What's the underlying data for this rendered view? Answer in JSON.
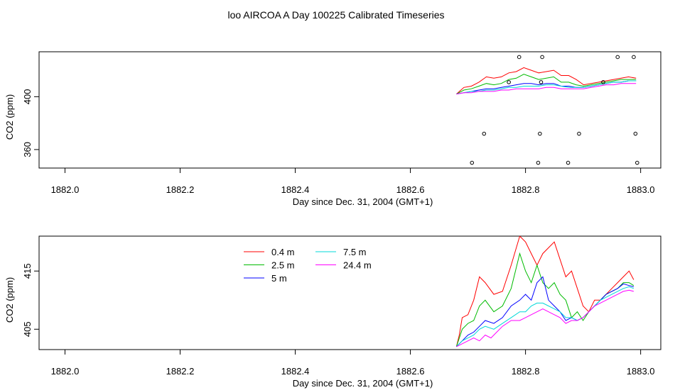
{
  "title": "loo AIRCOA A  Day 100225  Calibrated Timeseries",
  "chart_data": [
    {
      "type": "scatter",
      "xlabel": "Day since Dec. 31, 2004 (GMT+1)",
      "ylabel": "CO2 (ppm)",
      "xlim": [
        1881.955,
        1883.035
      ],
      "ylim": [
        346,
        434
      ],
      "xticks": [
        "1882.0",
        "1882.2",
        "1882.4",
        "1882.6",
        "1882.8",
        "1883.0"
      ],
      "yticks": [
        "360",
        "400"
      ],
      "grid": false,
      "series": [
        {
          "name": "0.4 m",
          "color": "#ff0000",
          "x": [
            1882.68,
            1882.693,
            1882.706,
            1882.719,
            1882.732,
            1882.745,
            1882.758,
            1882.771,
            1882.784,
            1882.797,
            1882.81,
            1882.823,
            1882.836,
            1882.849,
            1882.862,
            1882.875,
            1882.888,
            1882.901,
            1882.914,
            1882.927,
            1882.94,
            1882.953,
            1882.966,
            1882.979,
            1882.992
          ],
          "y": [
            402,
            407,
            408,
            411,
            415,
            414,
            415,
            418,
            419,
            422,
            420,
            418,
            419,
            420,
            416,
            416,
            413,
            409,
            410,
            411,
            412,
            413,
            414,
            415,
            414
          ]
        },
        {
          "name": "2.5 m",
          "color": "#00bb00",
          "x": [
            1882.68,
            1882.693,
            1882.706,
            1882.719,
            1882.732,
            1882.745,
            1882.758,
            1882.771,
            1882.784,
            1882.797,
            1882.81,
            1882.823,
            1882.836,
            1882.849,
            1882.862,
            1882.875,
            1882.888,
            1882.901,
            1882.914,
            1882.927,
            1882.94,
            1882.953,
            1882.966,
            1882.979,
            1882.992
          ],
          "y": [
            402,
            405,
            406,
            408,
            410,
            409,
            410,
            413,
            414,
            417,
            415,
            413,
            414,
            415,
            411,
            411,
            409,
            408,
            409,
            410,
            411,
            412,
            413,
            413,
            413
          ]
        },
        {
          "name": "5 m",
          "color": "#0000ff",
          "x": [
            1882.68,
            1882.693,
            1882.706,
            1882.719,
            1882.732,
            1882.745,
            1882.758,
            1882.771,
            1882.784,
            1882.797,
            1882.81,
            1882.823,
            1882.836,
            1882.849,
            1882.862,
            1882.875,
            1882.888,
            1882.901,
            1882.914,
            1882.927,
            1882.94,
            1882.953,
            1882.966,
            1882.979,
            1882.992
          ],
          "y": [
            402,
            403,
            404,
            405,
            406,
            406,
            407,
            408,
            409,
            410,
            410,
            409,
            410,
            410,
            408,
            408,
            407,
            407,
            408,
            409,
            410,
            411,
            411,
            412,
            412
          ]
        },
        {
          "name": "7.5 m",
          "color": "#00d8d8",
          "x": [
            1882.68,
            1882.693,
            1882.706,
            1882.719,
            1882.732,
            1882.745,
            1882.758,
            1882.771,
            1882.784,
            1882.797,
            1882.81,
            1882.823,
            1882.836,
            1882.849,
            1882.862,
            1882.875,
            1882.888,
            1882.901,
            1882.914,
            1882.927,
            1882.94,
            1882.953,
            1882.966,
            1882.979,
            1882.992
          ],
          "y": [
            402,
            403,
            404,
            404,
            405,
            405,
            406,
            407,
            407,
            408,
            408,
            408,
            409,
            409,
            408,
            407,
            407,
            407,
            408,
            409,
            410,
            411,
            411,
            412,
            412
          ]
        },
        {
          "name": "24.4 m",
          "color": "#ff00ff",
          "x": [
            1882.68,
            1882.693,
            1882.706,
            1882.719,
            1882.732,
            1882.745,
            1882.758,
            1882.771,
            1882.784,
            1882.797,
            1882.81,
            1882.823,
            1882.836,
            1882.849,
            1882.862,
            1882.875,
            1882.888,
            1882.901,
            1882.914,
            1882.927,
            1882.94,
            1882.953,
            1882.966,
            1882.979,
            1882.992
          ],
          "y": [
            402,
            403,
            403,
            404,
            404,
            404,
            405,
            405,
            406,
            406,
            406,
            406,
            407,
            407,
            406,
            406,
            406,
            406,
            407,
            408,
            409,
            409,
            410,
            410,
            410
          ]
        },
        {
          "name": "",
          "color": "#000000",
          "marker": "open-circle",
          "x": [
            1882.707,
            1882.728,
            1882.771,
            1882.789,
            1882.822,
            1882.825,
            1882.827,
            1882.829,
            1882.874,
            1882.893,
            1882.935,
            1882.96,
            1882.988,
            1882.991,
            1882.994
          ],
          "y": [
            350,
            372,
            411,
            430,
            350,
            372,
            411,
            430,
            350,
            372,
            411,
            430,
            430,
            372,
            350
          ]
        }
      ]
    },
    {
      "type": "line",
      "xlabel": "Day since Dec. 31, 2004 (GMT+1)",
      "ylabel": "CO2 (ppm)",
      "xlim": [
        1881.955,
        1883.035
      ],
      "ylim": [
        401.5,
        421
      ],
      "xticks": [
        "1882.0",
        "1882.2",
        "1882.4",
        "1882.6",
        "1882.8",
        "1883.0"
      ],
      "yticks": [
        "405",
        "415"
      ],
      "grid": false,
      "legend_position": "top-left",
      "series": [
        {
          "name": "0.4 m",
          "color": "#ff0000",
          "x": [
            1882.68,
            1882.685,
            1882.69,
            1882.7,
            1882.71,
            1882.72,
            1882.73,
            1882.745,
            1882.76,
            1882.775,
            1882.79,
            1882.8,
            1882.81,
            1882.82,
            1882.83,
            1882.84,
            1882.85,
            1882.86,
            1882.87,
            1882.88,
            1882.89,
            1882.9,
            1882.91,
            1882.92,
            1882.93,
            1882.94,
            1882.95,
            1882.96,
            1882.97,
            1882.98,
            1882.988
          ],
          "y": [
            402,
            404,
            407,
            407.5,
            410,
            414,
            413,
            411,
            411.5,
            416,
            421,
            420,
            418,
            416,
            418,
            419,
            420,
            417,
            414,
            415,
            412,
            409,
            408,
            410,
            410,
            411,
            412,
            413,
            414,
            415,
            413.5
          ]
        },
        {
          "name": "2.5 m",
          "color": "#00bb00",
          "x": [
            1882.68,
            1882.69,
            1882.7,
            1882.71,
            1882.72,
            1882.73,
            1882.745,
            1882.76,
            1882.775,
            1882.79,
            1882.8,
            1882.81,
            1882.82,
            1882.83,
            1882.84,
            1882.85,
            1882.86,
            1882.87,
            1882.88,
            1882.89,
            1882.9,
            1882.91,
            1882.92,
            1882.93,
            1882.94,
            1882.95,
            1882.96,
            1882.97,
            1882.98,
            1882.988
          ],
          "y": [
            402,
            405,
            406,
            406.5,
            409,
            410,
            408,
            409,
            412,
            418,
            415,
            413,
            416,
            413,
            412,
            413,
            411,
            410,
            407,
            408,
            406.5,
            408,
            409,
            410,
            411,
            411.5,
            412,
            413,
            413,
            412.5
          ]
        },
        {
          "name": "5 m",
          "color": "#0000ff",
          "x": [
            1882.68,
            1882.69,
            1882.7,
            1882.71,
            1882.72,
            1882.73,
            1882.745,
            1882.76,
            1882.775,
            1882.79,
            1882.8,
            1882.81,
            1882.82,
            1882.83,
            1882.84,
            1882.85,
            1882.86,
            1882.87,
            1882.88,
            1882.89,
            1882.9,
            1882.91,
            1882.92,
            1882.93,
            1882.94,
            1882.95,
            1882.96,
            1882.97,
            1882.98,
            1882.988
          ],
          "y": [
            402,
            403,
            404,
            404.5,
            405.5,
            406.5,
            406,
            407,
            409,
            410,
            411,
            410,
            413,
            414,
            410,
            409,
            408,
            406.5,
            407,
            406.5,
            407,
            408,
            409,
            410,
            411,
            411.5,
            412,
            412.8,
            412.5,
            412.3
          ]
        },
        {
          "name": "7.5 m",
          "color": "#00d8d8",
          "x": [
            1882.68,
            1882.69,
            1882.7,
            1882.71,
            1882.72,
            1882.73,
            1882.745,
            1882.76,
            1882.775,
            1882.79,
            1882.8,
            1882.81,
            1882.82,
            1882.83,
            1882.84,
            1882.85,
            1882.86,
            1882.87,
            1882.88,
            1882.89,
            1882.9,
            1882.91,
            1882.92,
            1882.93,
            1882.94,
            1882.95,
            1882.96,
            1882.97,
            1882.98,
            1882.988
          ],
          "y": [
            402,
            403,
            403.5,
            404,
            405,
            405.5,
            405,
            406,
            407,
            408,
            408,
            409,
            409.5,
            409.5,
            409,
            408.5,
            408,
            407,
            407,
            406.5,
            407,
            408,
            409,
            410,
            410.5,
            411,
            411.5,
            412,
            412.3,
            412
          ]
        },
        {
          "name": "24.4 m",
          "color": "#ff00ff",
          "x": [
            1882.68,
            1882.69,
            1882.7,
            1882.71,
            1882.72,
            1882.73,
            1882.74,
            1882.75,
            1882.76,
            1882.775,
            1882.79,
            1882.8,
            1882.81,
            1882.82,
            1882.83,
            1882.84,
            1882.85,
            1882.86,
            1882.87,
            1882.88,
            1882.89,
            1882.9,
            1882.91,
            1882.92,
            1882.93,
            1882.94,
            1882.95,
            1882.96,
            1882.97,
            1882.98,
            1882.988
          ],
          "y": [
            402,
            402.5,
            403,
            403.5,
            403,
            404,
            403.5,
            404.5,
            405.5,
            406.5,
            406.5,
            407,
            407.5,
            408,
            408.5,
            408,
            407.5,
            407,
            406,
            406.5,
            406.5,
            407,
            408,
            409,
            409.5,
            410,
            410.5,
            411,
            411.5,
            411.7,
            411.5
          ]
        }
      ]
    }
  ]
}
